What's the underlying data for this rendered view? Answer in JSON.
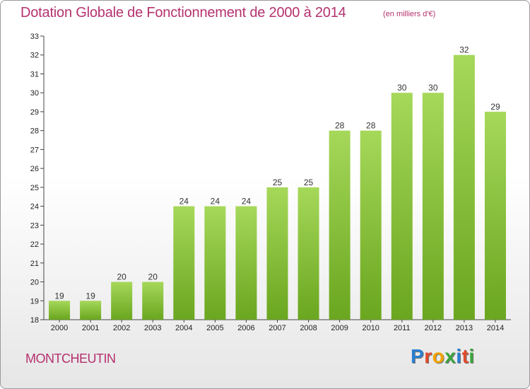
{
  "header": {
    "title": "Dotation Globale de Fonctionnement de 2000 à 2014",
    "subtitle": "(en milliers d'€)"
  },
  "footer": {
    "town": "MONTCHEUTIN",
    "logo_letters": [
      "P",
      "r",
      "o",
      "x",
      "i",
      "t",
      "i"
    ],
    "logo_colors": [
      "#2a7fcf",
      "#e0492a",
      "#f2a300",
      "#3aa53a",
      "#2a7fcf",
      "#e0492a",
      "#3aa53a"
    ]
  },
  "chart_data": {
    "type": "bar",
    "categories": [
      "2000",
      "2001",
      "2002",
      "2003",
      "2004",
      "2005",
      "2006",
      "2007",
      "2008",
      "2009",
      "2010",
      "2011",
      "2012",
      "2013",
      "2014"
    ],
    "values": [
      19,
      19,
      20,
      20,
      24,
      24,
      24,
      25,
      25,
      28,
      28,
      30,
      30,
      32,
      29
    ],
    "title": "Dotation Globale de Fonctionnement de 2000 à 2014",
    "xlabel": "",
    "ylabel": "",
    "ylim": [
      18,
      33
    ],
    "yticks": [
      18,
      19,
      20,
      21,
      22,
      23,
      24,
      25,
      26,
      27,
      28,
      29,
      30,
      31,
      32,
      33
    ],
    "grid": false,
    "bar_color": "#7fbf2e"
  }
}
